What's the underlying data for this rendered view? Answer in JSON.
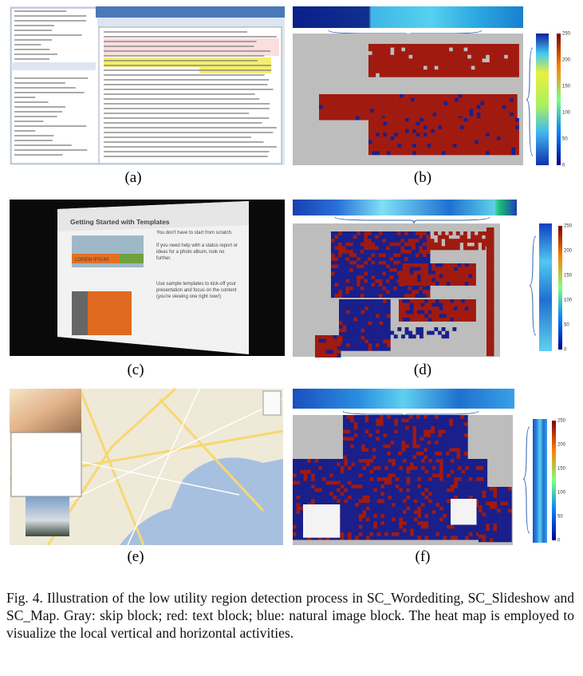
{
  "figure": {
    "panels": [
      {
        "label": "(a)"
      },
      {
        "label": "(b)",
        "colorbar_ticks": [
          "250",
          "200",
          "150",
          "100",
          "50",
          "0"
        ]
      },
      {
        "label": "(c)"
      },
      {
        "label": "(d)",
        "colorbar_ticks": [
          "250",
          "200",
          "150",
          "100",
          "50",
          "0"
        ]
      },
      {
        "label": "(e)"
      },
      {
        "label": "(f)",
        "colorbar_ticks": [
          "250",
          "200",
          "150",
          "100",
          "50",
          "0"
        ]
      }
    ],
    "slide": {
      "title": "Getting Started with Templates",
      "banner": "LOREM IPSUM",
      "text_1": "You don't have to start from scratch.",
      "text_2": "If you need help with a status report or ideas for a photo album, look no further.",
      "text_3": "Use sample templates to kick-off your presentation and focus on the content (you're viewing one right now!)"
    },
    "caption": "Fig. 4.  Illustration of the low utility region detection process in SC_Wordediting, SC_Slideshow and SC_Map. Gray: skip block; red: text block; blue: natural image block. The heat map is employed to visualize the local vertical and horizontal activities."
  }
}
